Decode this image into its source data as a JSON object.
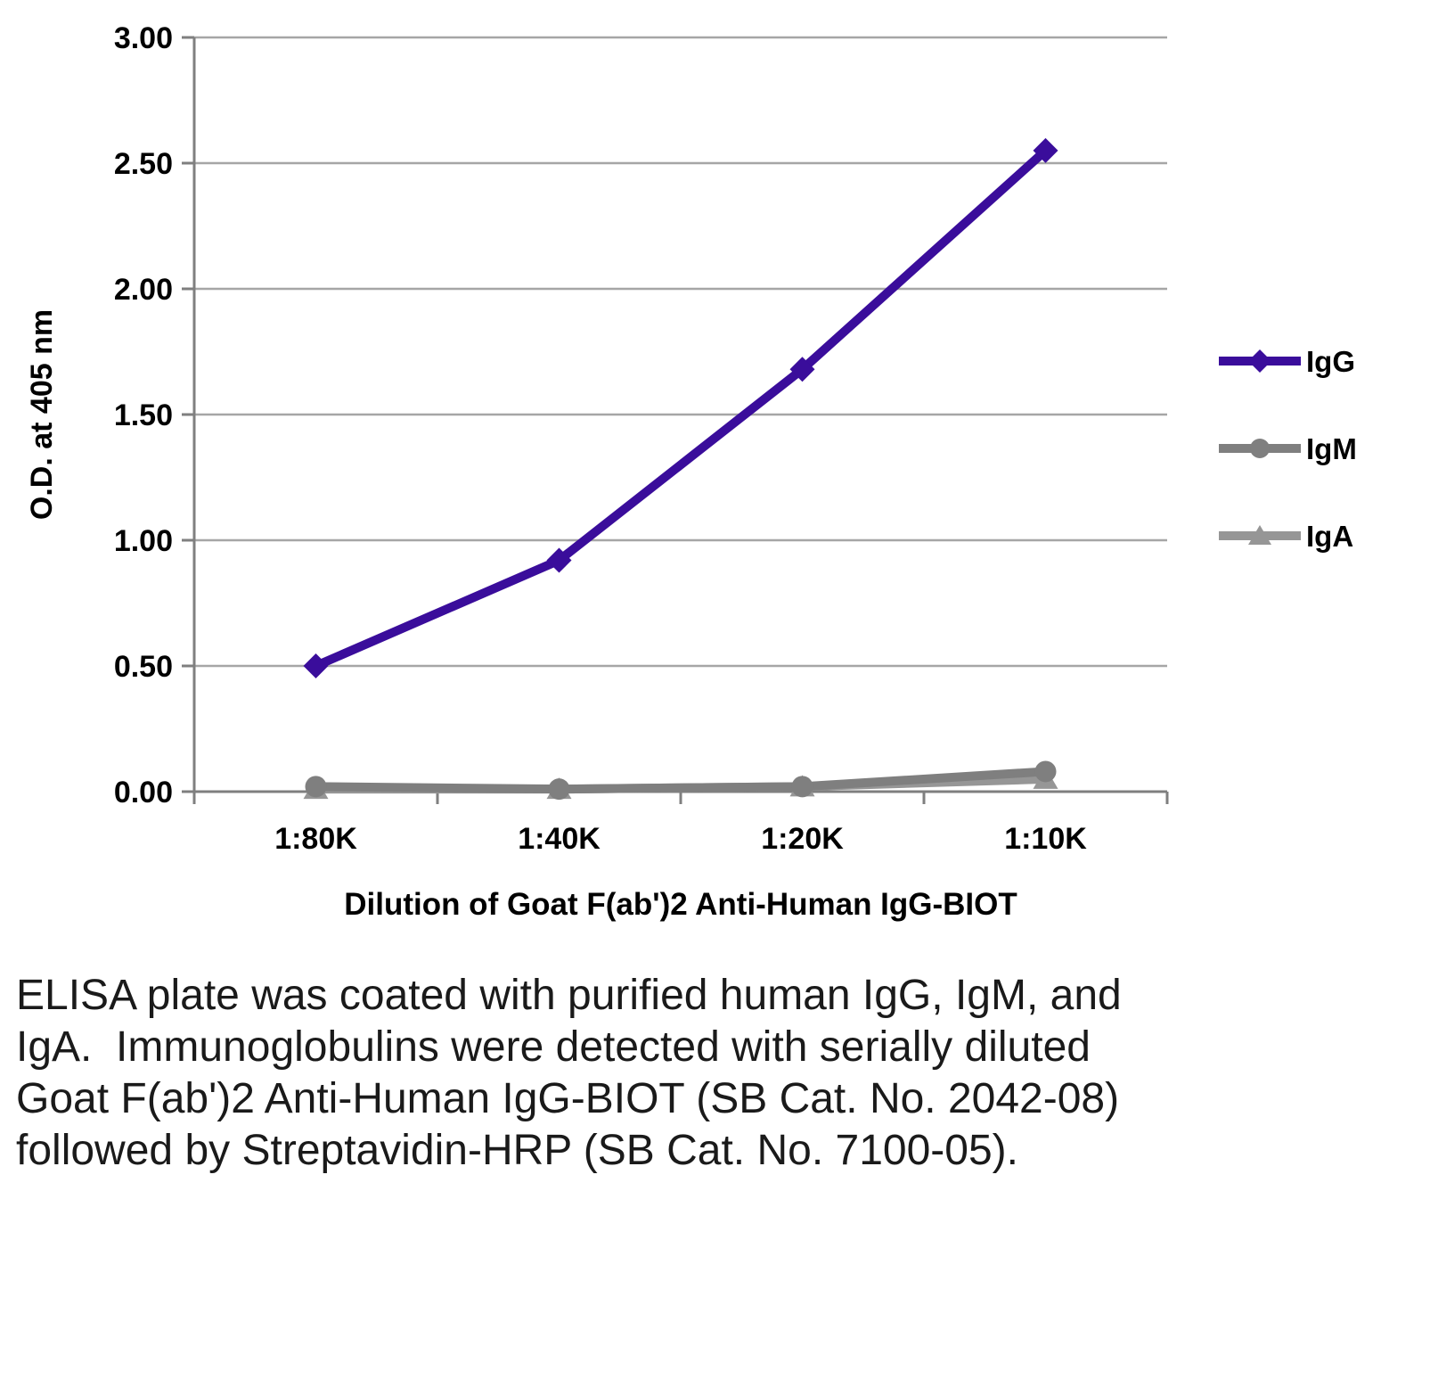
{
  "caption": "ELISA plate was coated with purified human IgG, IgM, and IgA.  Immunoglobulins were detected with serially diluted Goat F(ab')2 Anti-Human IgG-BIOT (SB Cat. No. 2042-08) followed by Streptavidin-HRP (SB Cat. No. 7100-05).",
  "chart_data": {
    "type": "line",
    "title": "",
    "xlabel": "Dilution of Goat F(ab')2 Anti-Human IgG-BIOT",
    "ylabel": "O.D. at 405 nm",
    "categories": [
      "1:80K",
      "1:40K",
      "1:20K",
      "1:10K"
    ],
    "ylim": [
      0,
      3
    ],
    "ytick_step": 0.5,
    "grid": true,
    "legend_position": "right",
    "colors": {
      "grid": "#a6a6a6",
      "axis": "#7f7f7f"
    },
    "series": [
      {
        "name": "IgG",
        "values": [
          0.5,
          0.92,
          1.68,
          2.55
        ],
        "color": "#3a0d9b",
        "marker": "diamond"
      },
      {
        "name": "IgM",
        "values": [
          0.02,
          0.01,
          0.02,
          0.08
        ],
        "color": "#7f7f7f",
        "marker": "circle"
      },
      {
        "name": "IgA",
        "values": [
          0.01,
          0.01,
          0.02,
          0.05
        ],
        "color": "#969696",
        "marker": "triangle"
      }
    ]
  }
}
